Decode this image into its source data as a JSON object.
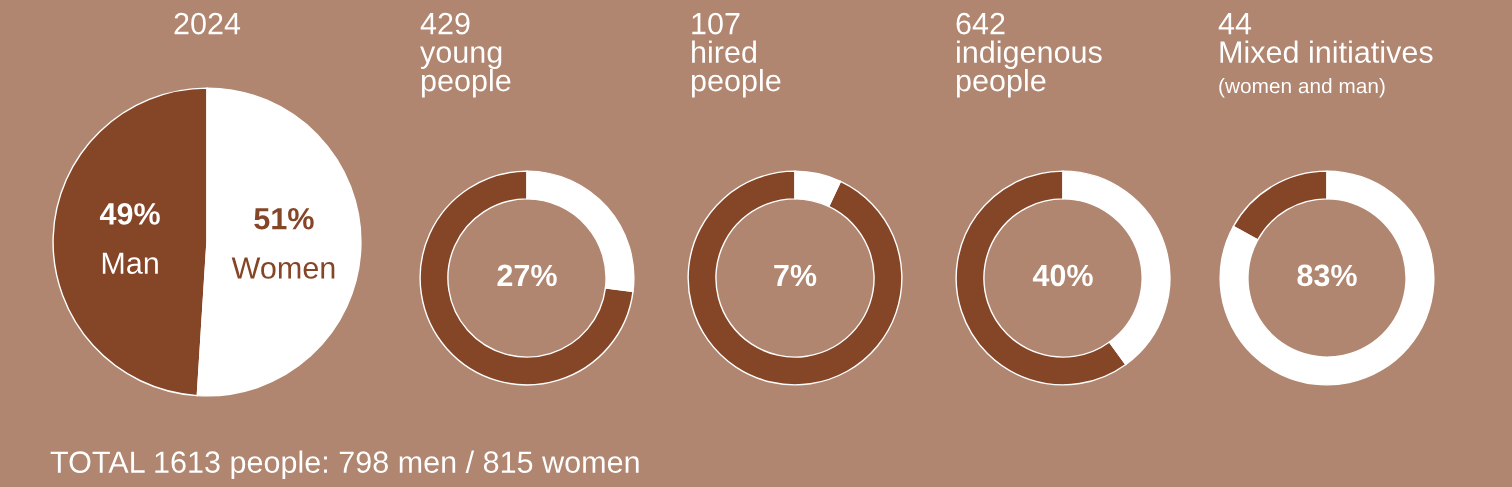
{
  "chart_data": [
    {
      "type": "pie",
      "title": "2024",
      "categories": [
        "Man",
        "Women"
      ],
      "values": [
        49,
        51
      ],
      "colors": [
        "#854527",
        "#ffffff"
      ],
      "value_labels": [
        "49%",
        "51%"
      ],
      "annotations": [
        "TOTAL 1613 people: 798 men / 815 women"
      ]
    },
    {
      "type": "donut",
      "title": "429\nyoung\npeople",
      "categories": [
        null,
        null
      ],
      "values": [
        73,
        27
      ],
      "colors": [
        "#854527",
        "#ffffff"
      ],
      "value_labels": [
        null,
        "27%"
      ]
    },
    {
      "type": "donut",
      "title": "107\nhired\npeople",
      "categories": [
        null,
        null
      ],
      "values": [
        93,
        7
      ],
      "colors": [
        "#854527",
        "#ffffff"
      ],
      "value_labels": [
        null,
        "7%"
      ]
    },
    {
      "type": "donut",
      "title": "642\nindigenous\npeople",
      "categories": [
        null,
        null
      ],
      "values": [
        60,
        40
      ],
      "colors": [
        "#854527",
        "#ffffff"
      ],
      "value_labels": [
        null,
        "40%"
      ]
    },
    {
      "type": "donut",
      "title": "44\nMixed initiatives",
      "subtitle": "(women and man)",
      "categories": [
        null,
        null
      ],
      "values": [
        17,
        83
      ],
      "colors": [
        "#854527",
        "#ffffff"
      ],
      "value_labels": [
        null,
        "83%"
      ]
    }
  ]
}
